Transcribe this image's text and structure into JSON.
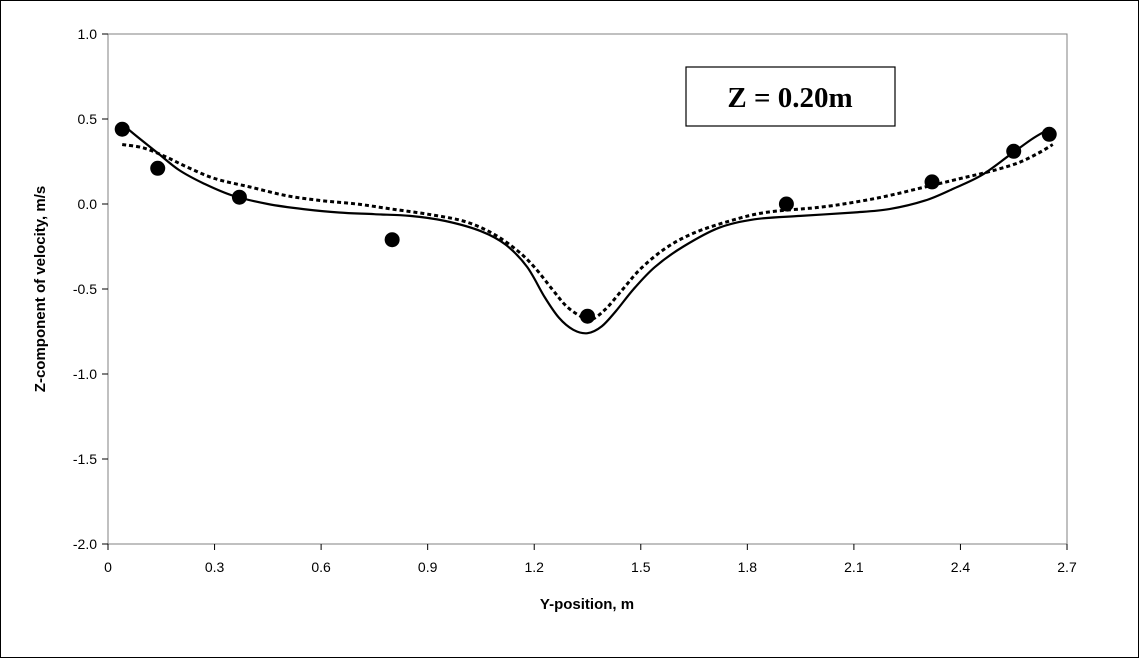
{
  "chart_data": {
    "type": "line",
    "xlabel": "Y-position, m",
    "ylabel": "Z-component of velocity, m/s",
    "xlim": [
      0,
      2.7
    ],
    "ylim": [
      -2.0,
      1.0
    ],
    "x_ticks": [
      "0",
      "0.3",
      "0.6",
      "0.9",
      "1.2",
      "1.5",
      "1.8",
      "2.1",
      "2.4",
      "2.7"
    ],
    "y_ticks": [
      "1.0",
      "0.5",
      "0.0",
      "-0.5",
      "-1.0",
      "-1.5",
      "-2.0"
    ],
    "x_tick_values": [
      0,
      0.3,
      0.6,
      0.9,
      1.2,
      1.5,
      1.8,
      2.1,
      2.4,
      2.7
    ],
    "y_tick_values": [
      1.0,
      0.5,
      0.0,
      -0.5,
      -1.0,
      -1.5,
      -2.0
    ],
    "grid": false,
    "legend": "none",
    "annotation": "Z = 0.20m",
    "series": [
      {
        "style": "solid",
        "x": [
          0.04,
          0.08,
          0.14,
          0.2,
          0.27,
          0.35,
          0.45,
          0.55,
          0.65,
          0.75,
          0.85,
          0.95,
          1.05,
          1.12,
          1.18,
          1.23,
          1.27,
          1.31,
          1.35,
          1.39,
          1.43,
          1.48,
          1.54,
          1.62,
          1.72,
          1.82,
          1.95,
          2.1,
          2.2,
          2.3,
          2.38,
          2.46,
          2.54,
          2.6,
          2.64
        ],
        "y": [
          0.47,
          0.4,
          0.3,
          0.2,
          0.12,
          0.05,
          0.0,
          -0.03,
          -0.05,
          -0.06,
          -0.07,
          -0.1,
          -0.16,
          -0.24,
          -0.37,
          -0.55,
          -0.67,
          -0.74,
          -0.76,
          -0.72,
          -0.63,
          -0.5,
          -0.37,
          -0.25,
          -0.14,
          -0.09,
          -0.07,
          -0.05,
          -0.03,
          0.02,
          0.09,
          0.17,
          0.29,
          0.38,
          0.43
        ]
      },
      {
        "style": "dotted",
        "x": [
          0.04,
          0.1,
          0.16,
          0.22,
          0.3,
          0.4,
          0.5,
          0.6,
          0.7,
          0.8,
          0.9,
          1.0,
          1.08,
          1.15,
          1.2,
          1.25,
          1.29,
          1.33,
          1.36,
          1.4,
          1.45,
          1.5,
          1.57,
          1.65,
          1.75,
          1.85,
          2.0,
          2.1,
          2.2,
          2.3,
          2.4,
          2.48,
          2.56,
          2.62,
          2.66
        ],
        "y": [
          0.35,
          0.33,
          0.28,
          0.22,
          0.15,
          0.1,
          0.05,
          0.02,
          0.0,
          -0.03,
          -0.06,
          -0.1,
          -0.17,
          -0.27,
          -0.37,
          -0.5,
          -0.6,
          -0.66,
          -0.68,
          -0.62,
          -0.5,
          -0.38,
          -0.26,
          -0.17,
          -0.1,
          -0.05,
          -0.02,
          0.01,
          0.05,
          0.1,
          0.15,
          0.19,
          0.24,
          0.3,
          0.35
        ]
      },
      {
        "style": "markers",
        "x": [
          0.04,
          0.14,
          0.37,
          0.8,
          1.35,
          1.91,
          2.32,
          2.55,
          2.65
        ],
        "y": [
          0.44,
          0.21,
          0.04,
          -0.21,
          -0.66,
          0.0,
          0.13,
          0.31,
          0.41
        ]
      }
    ]
  }
}
